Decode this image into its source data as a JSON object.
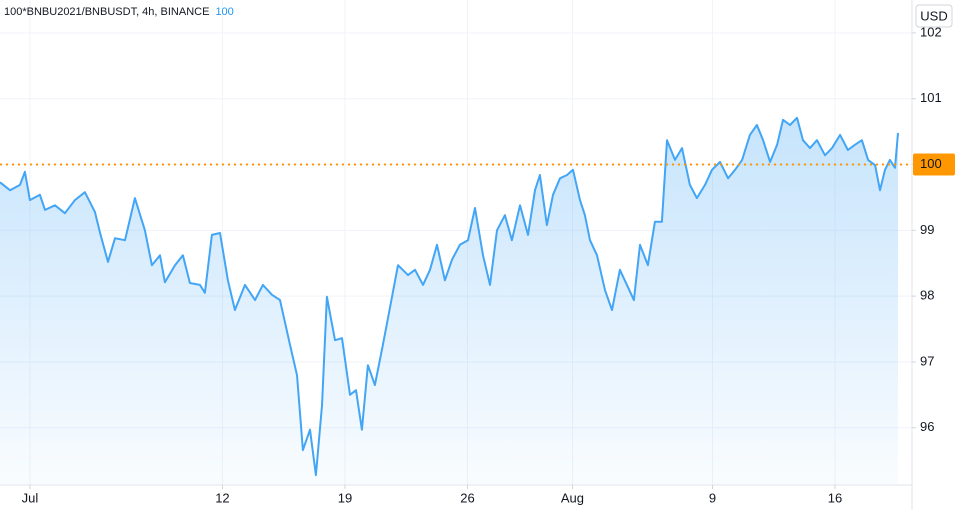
{
  "chart_data": {
    "type": "line",
    "legend_text": "100*BNBU2021/BNBUSDT, 4h, BINANCE",
    "last_value": 100,
    "y_unit": "USD",
    "price_line": 100,
    "grid": true,
    "xlim": [
      -1.71,
      50.4
    ],
    "ylim": [
      95.13,
      102.5
    ],
    "xticks": [
      {
        "value": 0,
        "label": "Jul"
      },
      {
        "value": 11,
        "label": "12"
      },
      {
        "value": 18,
        "label": "19"
      },
      {
        "value": 25,
        "label": "26"
      },
      {
        "value": 31,
        "label": "Aug"
      },
      {
        "value": 39,
        "label": "9"
      },
      {
        "value": 46,
        "label": "16"
      }
    ],
    "yticks": [
      96,
      97,
      98,
      99,
      100,
      101,
      102
    ],
    "x": [
      -1.71,
      -1.14,
      -0.57,
      -0.29,
      0,
      0.57,
      0.86,
      1.43,
      2,
      2.57,
      3.14,
      3.71,
      4,
      4.46,
      4.86,
      5.43,
      6,
      6.57,
      6.97,
      7.43,
      7.71,
      8.29,
      8.74,
      9.14,
      9.71,
      10,
      10.4,
      10.86,
      11.31,
      11.71,
      12.29,
      12.86,
      13.31,
      13.83,
      14.29,
      14.86,
      15.26,
      15.6,
      16,
      16.34,
      16.69,
      16.97,
      17.43,
      17.83,
      18.29,
      18.63,
      18.97,
      19.31,
      19.71,
      20.17,
      20.57,
      21.03,
      21.6,
      22,
      22.46,
      22.86,
      23.26,
      23.71,
      24.11,
      24.57,
      25.03,
      25.43,
      25.89,
      26.29,
      26.69,
      27.14,
      27.54,
      28,
      28.46,
      28.86,
      29.14,
      29.54,
      29.89,
      30.29,
      30.69,
      31.03,
      31.43,
      31.71,
      32,
      32.4,
      32.86,
      33.26,
      33.71,
      34.11,
      34.51,
      34.86,
      35.31,
      35.71,
      36.11,
      36.4,
      36.86,
      37.26,
      37.71,
      38.11,
      38.57,
      38.97,
      39.43,
      39.89,
      40.29,
      40.69,
      41.14,
      41.54,
      41.89,
      42.29,
      42.69,
      43.03,
      43.43,
      43.83,
      44.17,
      44.57,
      44.97,
      45.43,
      45.83,
      46.29,
      46.74,
      47.14,
      47.54,
      47.89,
      48.29,
      48.57,
      48.86,
      49.14,
      49.43,
      49.6
    ],
    "series": [
      {
        "color": "#42a5f5",
        "values": [
          99.73,
          99.61,
          99.69,
          99.89,
          99.46,
          99.54,
          99.31,
          99.38,
          99.26,
          99.46,
          99.58,
          99.28,
          98.97,
          98.52,
          98.88,
          98.85,
          99.49,
          99.0,
          98.47,
          98.62,
          98.21,
          98.47,
          98.62,
          98.2,
          98.17,
          98.05,
          98.93,
          98.96,
          98.24,
          97.79,
          98.17,
          97.94,
          98.17,
          98.02,
          97.94,
          97.26,
          96.8,
          95.66,
          95.97,
          95.28,
          96.34,
          97.99,
          97.33,
          97.36,
          96.5,
          96.57,
          95.97,
          96.95,
          96.65,
          97.26,
          97.82,
          98.47,
          98.32,
          98.4,
          98.17,
          98.4,
          98.78,
          98.24,
          98.55,
          98.78,
          98.85,
          99.34,
          98.62,
          98.17,
          99.0,
          99.23,
          98.85,
          99.38,
          98.93,
          99.61,
          99.84,
          99.08,
          99.54,
          99.79,
          99.84,
          99.92,
          99.46,
          99.23,
          98.85,
          98.62,
          98.09,
          97.79,
          98.4,
          98.17,
          97.94,
          98.78,
          98.47,
          99.13,
          99.13,
          100.37,
          100.07,
          100.25,
          99.69,
          99.49,
          99.69,
          99.92,
          100.04,
          99.79,
          99.92,
          100.07,
          100.45,
          100.6,
          100.37,
          100.04,
          100.3,
          100.68,
          100.6,
          100.71,
          100.37,
          100.25,
          100.37,
          100.14,
          100.25,
          100.45,
          100.22,
          100.3,
          100.37,
          100.07,
          99.99,
          99.61,
          99.92,
          100.07,
          99.95,
          100.48
        ]
      }
    ]
  }
}
